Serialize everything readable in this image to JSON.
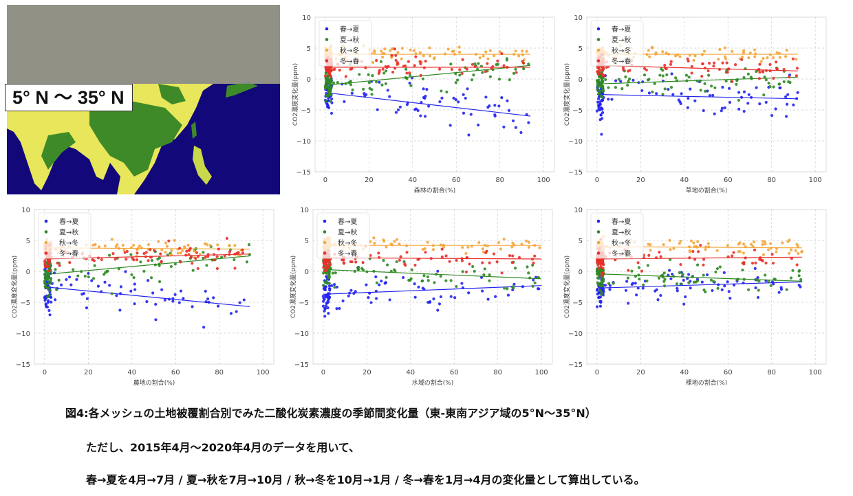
{
  "map": {
    "label": "5°  N ～ 35°  N"
  },
  "colors": {
    "spring_summer": "#2424f0",
    "summer_autumn": "#2f8a23",
    "autumn_winter": "#f4a63c",
    "winter_spring": "#e8302a"
  },
  "chart_data": [
    {
      "type": "scatter",
      "xlabel": "森林の割合(%)",
      "ylabel": "CO2濃度変化量(ppm)",
      "xlim": [
        -4.7,
        105
      ],
      "ylim": [
        -15,
        10
      ],
      "xticks": [
        0,
        20,
        40,
        60,
        80,
        100
      ],
      "yticks": [
        -15,
        -10,
        -5,
        0,
        5,
        10
      ],
      "grid": true,
      "legend": "top-left",
      "max_x": 94,
      "series": [
        {
          "name": "春→夏",
          "trend": [
            [
              0,
              -2.2
            ],
            [
              94,
              -6.0
            ]
          ],
          "spread": 1.6
        },
        {
          "name": "夏→秋",
          "trend": [
            [
              0,
              -1.0
            ],
            [
              94,
              2.2
            ]
          ],
          "spread": 1.3
        },
        {
          "name": "秋→冬",
          "trend": [
            [
              0,
              4.0
            ],
            [
              94,
              4.0
            ]
          ],
          "spread": 0.6
        },
        {
          "name": "冬→春",
          "trend": [
            [
              0,
              1.9
            ],
            [
              94,
              1.9
            ]
          ],
          "spread": 0.9
        }
      ]
    },
    {
      "type": "scatter",
      "xlabel": "草地の割合(%)",
      "ylabel": "CO2濃度変化量(ppm)",
      "xlim": [
        -4.7,
        105
      ],
      "ylim": [
        -15,
        10
      ],
      "xticks": [
        0,
        20,
        40,
        60,
        80,
        100
      ],
      "yticks": [
        -15,
        -10,
        -5,
        0,
        5,
        10
      ],
      "grid": true,
      "legend": "top-left",
      "max_x": 92,
      "series": [
        {
          "name": "春→夏",
          "trend": [
            [
              0,
              -2.5
            ],
            [
              92,
              -3.2
            ]
          ],
          "spread": 1.6
        },
        {
          "name": "夏→秋",
          "trend": [
            [
              0,
              -0.8
            ],
            [
              92,
              0.3
            ]
          ],
          "spread": 1.2
        },
        {
          "name": "秋→冬",
          "trend": [
            [
              0,
              4.0
            ],
            [
              92,
              4.0
            ]
          ],
          "spread": 0.6
        },
        {
          "name": "冬→春",
          "trend": [
            [
              0,
              2.2
            ],
            [
              92,
              1.3
            ]
          ],
          "spread": 0.9
        }
      ]
    },
    {
      "type": "scatter",
      "xlabel": "農地の割合(%)",
      "ylabel": "CO2濃度変化量(ppm)",
      "xlim": [
        -4.7,
        105
      ],
      "ylim": [
        -15,
        10
      ],
      "xticks": [
        0,
        20,
        40,
        60,
        80,
        100
      ],
      "yticks": [
        -15,
        -10,
        -5,
        0,
        5,
        10
      ],
      "grid": true,
      "legend": "top-left",
      "max_x": 94,
      "series": [
        {
          "name": "春→夏",
          "trend": [
            [
              0,
              -2.5
            ],
            [
              94,
              -5.7
            ]
          ],
          "spread": 1.7
        },
        {
          "name": "夏→秋",
          "trend": [
            [
              0,
              -0.5
            ],
            [
              94,
              2.5
            ]
          ],
          "spread": 1.3
        },
        {
          "name": "秋→冬",
          "trend": [
            [
              0,
              3.8
            ],
            [
              94,
              3.6
            ]
          ],
          "spread": 0.6
        },
        {
          "name": "冬→春",
          "trend": [
            [
              0,
              2.0
            ],
            [
              94,
              2.8
            ]
          ],
          "spread": 0.9
        }
      ]
    },
    {
      "type": "scatter",
      "xlabel": "水域の割合(%)",
      "ylabel": "CO2濃度変化量(ppm)",
      "xlim": [
        -4.7,
        105
      ],
      "ylim": [
        -15,
        10
      ],
      "xticks": [
        0,
        20,
        40,
        60,
        80,
        100
      ],
      "yticks": [
        -15,
        -10,
        -5,
        0,
        5,
        10
      ],
      "grid": true,
      "legend": "top-left",
      "max_x": 100,
      "series": [
        {
          "name": "春→夏",
          "trend": [
            [
              0,
              -3.7
            ],
            [
              100,
              -2.3
            ]
          ],
          "spread": 1.6
        },
        {
          "name": "夏→秋",
          "trend": [
            [
              0,
              0.3
            ],
            [
              100,
              -1.2
            ]
          ],
          "spread": 1.2
        },
        {
          "name": "秋→冬",
          "trend": [
            [
              0,
              4.2
            ],
            [
              100,
              4.2
            ]
          ],
          "spread": 0.6
        },
        {
          "name": "冬→春",
          "trend": [
            [
              0,
              2.2
            ],
            [
              100,
              2.0
            ]
          ],
          "spread": 0.9
        }
      ]
    },
    {
      "type": "scatter",
      "xlabel": "裸地の割合(%)",
      "ylabel": "CO2濃度変化量(ppm)",
      "xlim": [
        -4.7,
        105
      ],
      "ylim": [
        -15,
        10
      ],
      "xticks": [
        0,
        20,
        40,
        60,
        80,
        100
      ],
      "yticks": [
        -15,
        -10,
        -5,
        0,
        5,
        10
      ],
      "grid": true,
      "legend": "top-left",
      "max_x": 94,
      "series": [
        {
          "name": "春→夏",
          "trend": [
            [
              0,
              -2.7
            ],
            [
              94,
              -1.7
            ]
          ],
          "spread": 1.4
        },
        {
          "name": "夏→秋",
          "trend": [
            [
              0,
              -0.4
            ],
            [
              94,
              -1.6
            ]
          ],
          "spread": 1.1
        },
        {
          "name": "秋→冬",
          "trend": [
            [
              0,
              4.0
            ],
            [
              94,
              3.8
            ]
          ],
          "spread": 0.6
        },
        {
          "name": "冬→春",
          "trend": [
            [
              0,
              2.0
            ],
            [
              94,
              2.3
            ]
          ],
          "spread": 0.9
        }
      ]
    }
  ],
  "caption": {
    "title": "図4:各メッシュの土地被覆割合別でみた二酸化炭素濃度の季節間変化量（東-東南アジア域の5°N〜35°N）",
    "note1": "ただし、2015年4月〜2020年4月のデータを用いて、",
    "note2": "春→夏を4月→7月 / 夏→秋を7月→10月 / 秋→冬を10月→1月 / 冬→春を1月→4月の変化量として算出している。"
  }
}
